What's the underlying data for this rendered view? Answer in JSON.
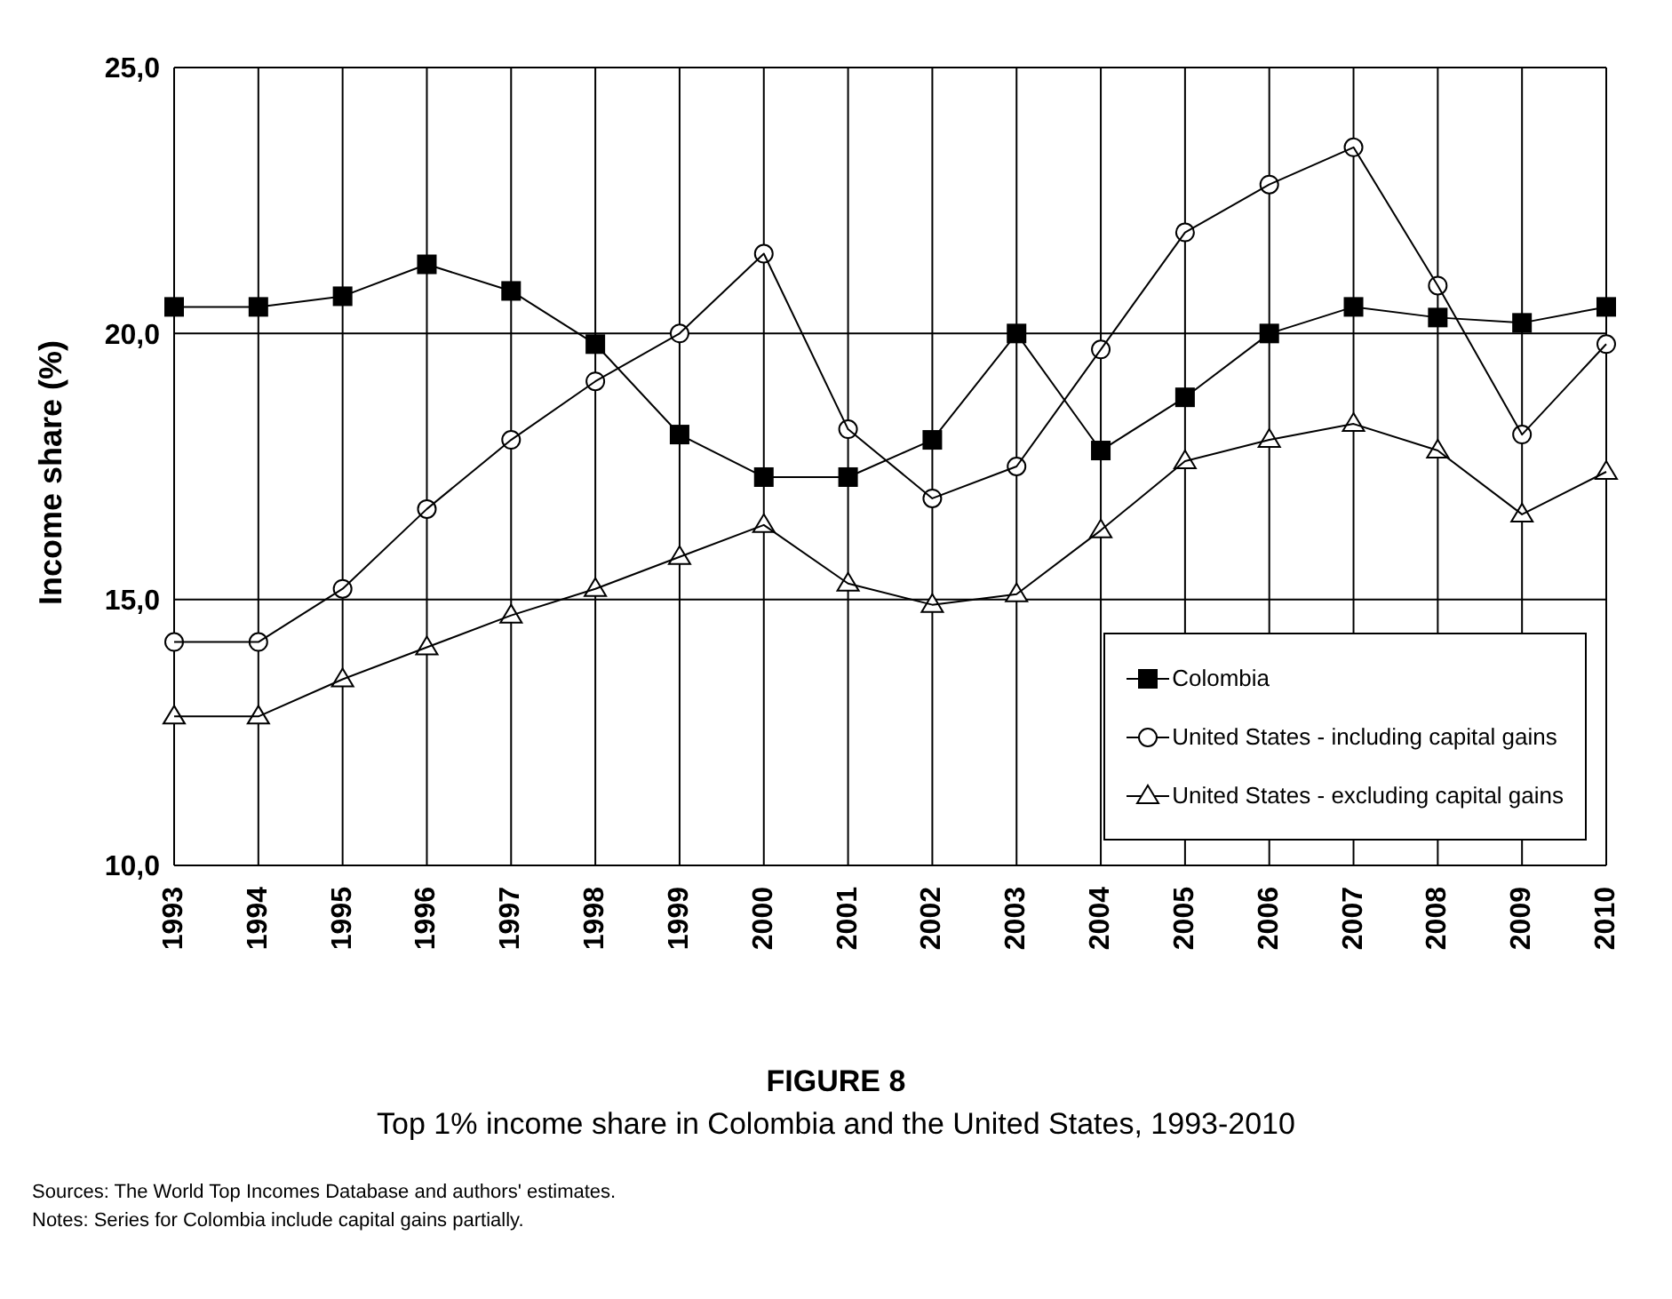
{
  "chart_data": {
    "type": "line",
    "title": "FIGURE 8",
    "subtitle": "Top 1%  income share in Colombia and the United States, 1993-2010",
    "ylabel": "Income share (%)",
    "categories": [
      "1993",
      "1994",
      "1995",
      "1996",
      "1997",
      "1998",
      "1999",
      "2000",
      "2001",
      "2002",
      "2003",
      "2004",
      "2005",
      "2006",
      "2007",
      "2008",
      "2009",
      "2010"
    ],
    "series": [
      {
        "name": "Colombia",
        "color": "#000000",
        "marker": "square",
        "values": [
          20.5,
          20.5,
          20.7,
          21.3,
          20.8,
          19.8,
          18.1,
          17.3,
          17.3,
          18.0,
          20.0,
          17.8,
          18.8,
          20.0,
          20.5,
          20.3,
          20.2,
          20.5
        ]
      },
      {
        "name": "United States - including capital gains",
        "color": "#000000",
        "marker": "circle",
        "values": [
          14.2,
          14.2,
          15.2,
          16.7,
          18.0,
          19.1,
          20.0,
          21.5,
          18.2,
          16.9,
          17.5,
          19.7,
          21.9,
          22.8,
          23.5,
          20.9,
          18.1,
          19.8
        ]
      },
      {
        "name": "United States - excluding capital gains",
        "color": "#000000",
        "marker": "triangle",
        "values": [
          12.8,
          12.8,
          13.5,
          14.1,
          14.7,
          15.2,
          15.8,
          16.4,
          15.3,
          14.9,
          15.1,
          16.3,
          17.6,
          18.0,
          18.3,
          17.8,
          16.6,
          17.4
        ]
      }
    ],
    "ylim": [
      10,
      25
    ],
    "yticks": [
      {
        "value": 10,
        "label": "10,0"
      },
      {
        "value": 15,
        "label": "15,0"
      },
      {
        "value": 20,
        "label": "20,0"
      },
      {
        "value": 25,
        "label": "25,0"
      }
    ],
    "grid": true,
    "legend": "bottom right",
    "annotations": [
      "Sources: The World Top Incomes Database and authors' estimates.",
      "Notes: Series for Colombia include capital gains partially."
    ]
  }
}
